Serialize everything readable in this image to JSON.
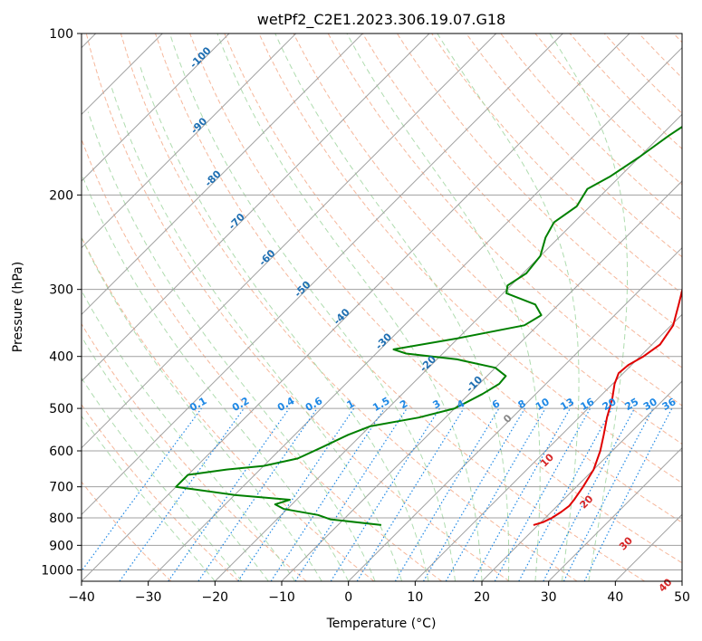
{
  "chart_data": {
    "type": "skew-t",
    "title": "wetPf2_C2E1.2023.306.19.07.G18",
    "xlabel": "Temperature (°C)",
    "ylabel": "Pressure (hPa)",
    "xlim": [
      -40,
      50
    ],
    "ylim": [
      1050,
      100
    ],
    "x_ticks": [
      -40,
      -30,
      -20,
      -10,
      0,
      10,
      20,
      30,
      40,
      50
    ],
    "y_ticks": [
      100,
      200,
      300,
      400,
      500,
      600,
      700,
      800,
      900,
      1000
    ],
    "grid": true,
    "colors": {
      "temperature": "#e00000",
      "dewpoint": "#008000",
      "isotherm": "#a0a0a0",
      "dry_adiabat": "#f4a582",
      "moist_adiabat": "#a6d8a6",
      "mixing_ratio": "#1e88e5",
      "isotherm_label": "#1f6fb2",
      "lcl_label": "#d62728"
    },
    "series": [
      {
        "name": "Temperature",
        "points": [
          {
            "p": 825,
            "t": 19.3
          },
          {
            "p": 815,
            "t": 20.3
          },
          {
            "p": 800,
            "t": 21.0
          },
          {
            "p": 780,
            "t": 21.5
          },
          {
            "p": 760,
            "t": 21.8
          },
          {
            "p": 740,
            "t": 21.6
          },
          {
            "p": 700,
            "t": 21.0
          },
          {
            "p": 650,
            "t": 20.0
          },
          {
            "p": 600,
            "t": 18.2
          },
          {
            "p": 560,
            "t": 16.3
          },
          {
            "p": 520,
            "t": 14.2
          },
          {
            "p": 480,
            "t": 12.2
          },
          {
            "p": 450,
            "t": 10.3
          },
          {
            "p": 430,
            "t": 9.3
          },
          {
            "p": 415,
            "t": 9.5
          },
          {
            "p": 400,
            "t": 10.5
          },
          {
            "p": 380,
            "t": 11.2
          },
          {
            "p": 350,
            "t": 10.3
          },
          {
            "p": 320,
            "t": 8.0
          },
          {
            "p": 300,
            "t": 6.3
          },
          {
            "p": 270,
            "t": 5.8
          },
          {
            "p": 250,
            "t": 6.6
          },
          {
            "p": 230,
            "t": 7.9
          },
          {
            "p": 210,
            "t": 8.6
          },
          {
            "p": 195,
            "t": 8.7
          },
          {
            "p": 180,
            "t": 7.9
          },
          {
            "p": 165,
            "t": 7.2
          },
          {
            "p": 150,
            "t": 7.2
          },
          {
            "p": 135,
            "t": 7.9
          },
          {
            "p": 122,
            "t": 9.1
          },
          {
            "p": 110,
            "t": 9.2
          },
          {
            "p": 100,
            "t": 9.6
          }
        ]
      },
      {
        "name": "Dewpoint",
        "points": [
          {
            "p": 825,
            "t": -3.5
          },
          {
            "p": 805,
            "t": -12.0
          },
          {
            "p": 790,
            "t": -14.5
          },
          {
            "p": 770,
            "t": -20.5
          },
          {
            "p": 755,
            "t": -22.5
          },
          {
            "p": 740,
            "t": -21.0
          },
          {
            "p": 725,
            "t": -30.0
          },
          {
            "p": 700,
            "t": -40.0
          },
          {
            "p": 665,
            "t": -40.0
          },
          {
            "p": 650,
            "t": -35.0
          },
          {
            "p": 640,
            "t": -30.0
          },
          {
            "p": 620,
            "t": -26.0
          },
          {
            "p": 590,
            "t": -24.0
          },
          {
            "p": 560,
            "t": -22.0
          },
          {
            "p": 540,
            "t": -20.0
          },
          {
            "p": 520,
            "t": -14.0
          },
          {
            "p": 500,
            "t": -10.0
          },
          {
            "p": 470,
            "t": -8.0
          },
          {
            "p": 450,
            "t": -7.0
          },
          {
            "p": 435,
            "t": -7.2
          },
          {
            "p": 420,
            "t": -10.0
          },
          {
            "p": 405,
            "t": -17.0
          },
          {
            "p": 395,
            "t": -25.5
          },
          {
            "p": 388,
            "t": -28.0
          },
          {
            "p": 370,
            "t": -20.0
          },
          {
            "p": 350,
            "t": -12.0
          },
          {
            "p": 335,
            "t": -11.0
          },
          {
            "p": 320,
            "t": -13.5
          },
          {
            "p": 305,
            "t": -19.5
          },
          {
            "p": 295,
            "t": -20.5
          },
          {
            "p": 280,
            "t": -19.5
          },
          {
            "p": 260,
            "t": -20.0
          },
          {
            "p": 240,
            "t": -22.0
          },
          {
            "p": 225,
            "t": -23.0
          },
          {
            "p": 210,
            "t": -22.0
          },
          {
            "p": 195,
            "t": -23.0
          },
          {
            "p": 185,
            "t": -21.5
          },
          {
            "p": 170,
            "t": -20.0
          },
          {
            "p": 155,
            "t": -18.8
          },
          {
            "p": 140,
            "t": -17.0
          },
          {
            "p": 125,
            "t": -14.5
          },
          {
            "p": 112,
            "t": -12.5
          },
          {
            "p": 100,
            "t": -10.5
          }
        ]
      }
    ],
    "isotherm_labels": [
      "-100",
      "-90",
      "-80",
      "-70",
      "-60",
      "-50",
      "-40",
      "-30",
      "-20",
      "-10"
    ],
    "mixing_ratio_labels": [
      "0.1",
      "0.2",
      "0.4",
      "0.6",
      "1",
      "1.5",
      "2",
      "3",
      "4",
      "6",
      "8",
      "10",
      "13",
      "16",
      "20",
      "25",
      "30",
      "36"
    ],
    "lcl_labels": [
      "0",
      "10",
      "20",
      "30",
      "40"
    ]
  }
}
